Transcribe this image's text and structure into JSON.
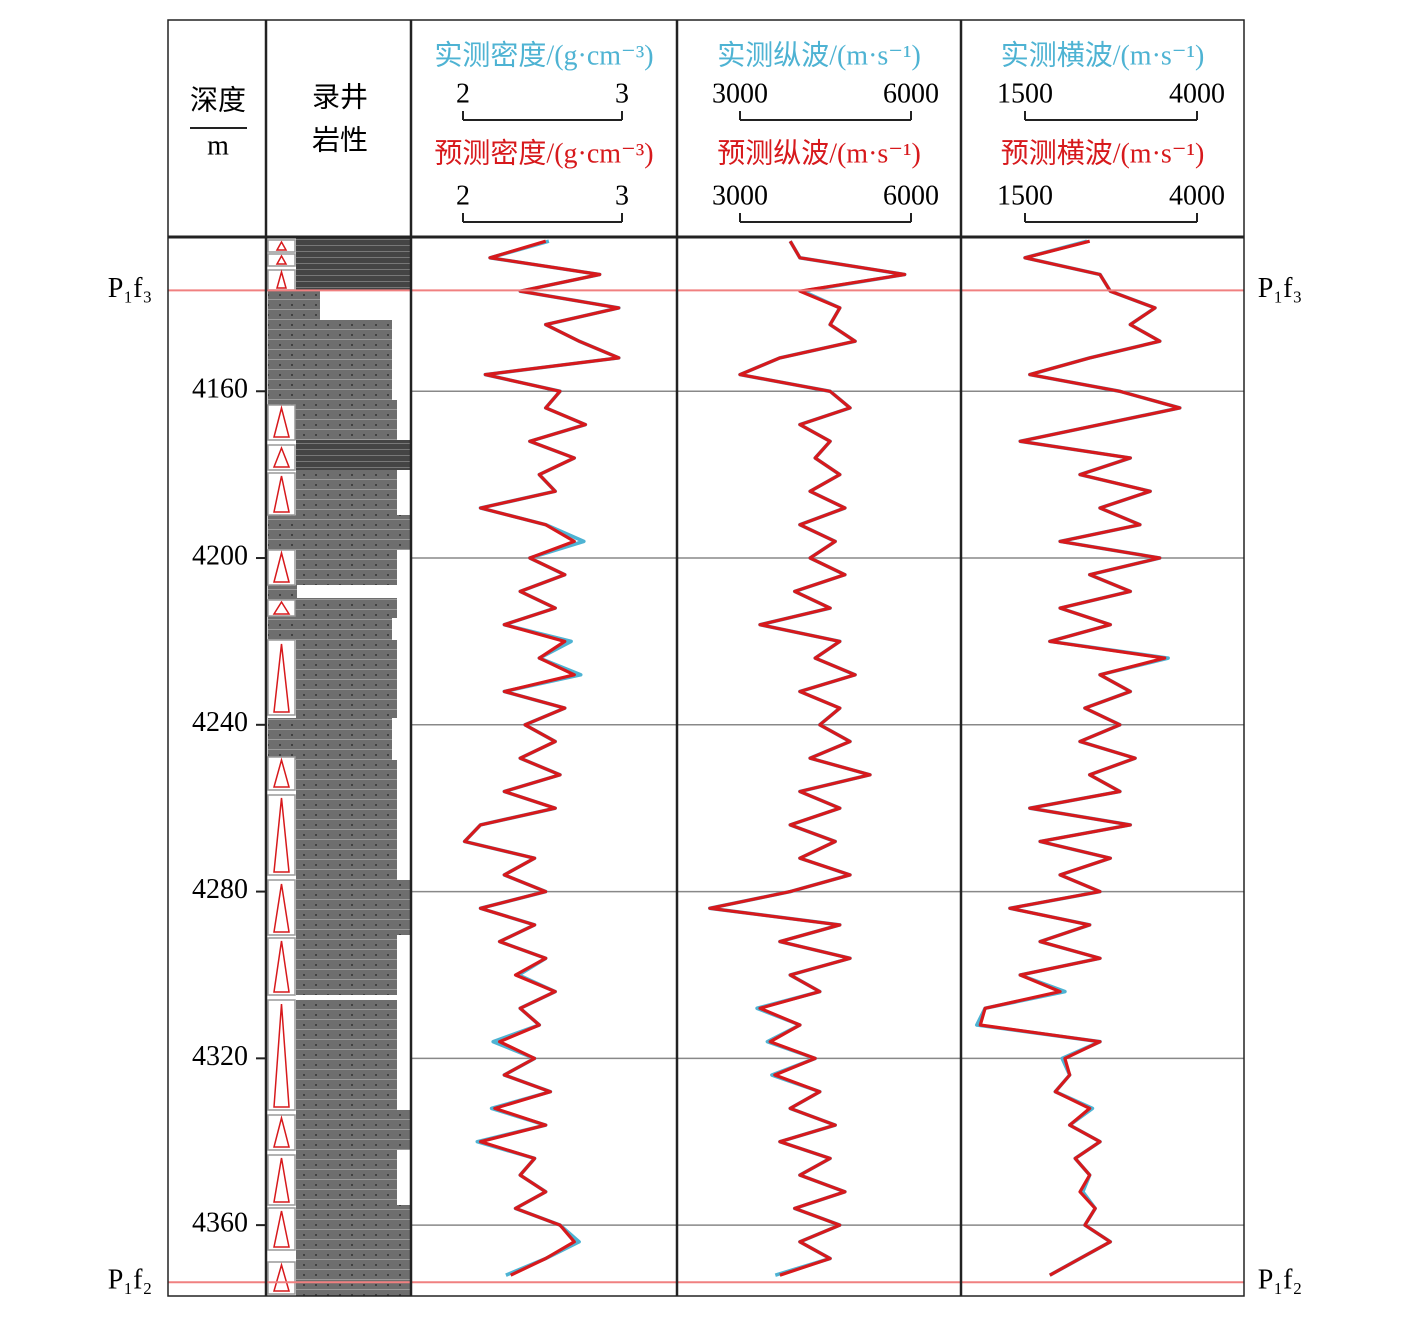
{
  "chart_data": {
    "type": "well-log",
    "depth_label": "深度",
    "depth_unit": "m",
    "lithology_label": [
      "录井",
      "岩性"
    ],
    "ylim": [
      4123,
      4377
    ],
    "yticks": [
      4160,
      4200,
      4240,
      4280,
      4320,
      4360
    ],
    "grid": true,
    "markers": [
      {
        "label": "P₁f₃",
        "depth": 4135.8,
        "color": "#f08080"
      },
      {
        "label": "P₁f₂",
        "depth": 4373.7,
        "color": "#f08080"
      }
    ],
    "depth": [
      4124,
      4128,
      4132,
      4136,
      4140,
      4144,
      4148,
      4152,
      4156,
      4160,
      4164,
      4168,
      4172,
      4176,
      4180,
      4184,
      4188,
      4192,
      4196,
      4200,
      4204,
      4208,
      4212,
      4216,
      4220,
      4224,
      4228,
      4232,
      4236,
      4240,
      4244,
      4248,
      4252,
      4256,
      4260,
      4264,
      4268,
      4272,
      4276,
      4280,
      4284,
      4288,
      4292,
      4296,
      4300,
      4304,
      4308,
      4312,
      4316,
      4320,
      4324,
      4328,
      4332,
      4336,
      4340,
      4344,
      4348,
      4352,
      4356,
      4360,
      4364,
      4368,
      4372
    ],
    "tracks": [
      {
        "series": [
          {
            "name": "实测密度/(g·cm⁻³)",
            "color": "#4eb3d3",
            "xlim": [
              2,
              3
            ],
            "xticks": [
              2,
              3
            ],
            "values": [
              2.54,
              2.17,
              2.86,
              2.36,
              2.98,
              2.52,
              2.73,
              2.98,
              2.14,
              2.61,
              2.52,
              2.77,
              2.42,
              2.7,
              2.48,
              2.58,
              2.11,
              2.52,
              2.76,
              2.42,
              2.64,
              2.36,
              2.58,
              2.26,
              2.68,
              2.48,
              2.74,
              2.26,
              2.64,
              2.39,
              2.58,
              2.36,
              2.61,
              2.26,
              2.58,
              2.11,
              2.01,
              2.45,
              2.26,
              2.52,
              2.11,
              2.45,
              2.23,
              2.52,
              2.35,
              2.58,
              2.36,
              2.48,
              2.19,
              2.45,
              2.26,
              2.55,
              2.18,
              2.52,
              2.09,
              2.45,
              2.36,
              2.52,
              2.33,
              2.61,
              2.73,
              2.52,
              2.27
            ]
          },
          {
            "name": "预测密度/(g·cm⁻³)",
            "color": "#d7191c",
            "xlim": [
              2,
              3
            ],
            "xticks": [
              2,
              3
            ],
            "values": [
              2.52,
              2.17,
              2.86,
              2.36,
              2.98,
              2.52,
              2.73,
              2.98,
              2.14,
              2.61,
              2.52,
              2.77,
              2.42,
              2.7,
              2.48,
              2.58,
              2.11,
              2.52,
              2.7,
              2.42,
              2.64,
              2.36,
              2.58,
              2.26,
              2.64,
              2.48,
              2.7,
              2.26,
              2.64,
              2.39,
              2.58,
              2.36,
              2.61,
              2.26,
              2.58,
              2.11,
              2.01,
              2.45,
              2.26,
              2.52,
              2.11,
              2.45,
              2.23,
              2.52,
              2.33,
              2.58,
              2.36,
              2.48,
              2.23,
              2.45,
              2.26,
              2.55,
              2.2,
              2.52,
              2.11,
              2.45,
              2.36,
              2.52,
              2.33,
              2.61,
              2.7,
              2.52,
              2.3
            ]
          }
        ]
      },
      {
        "series": [
          {
            "name": "实测纵波/(m·s⁻¹)",
            "color": "#4eb3d3",
            "xlim": [
              3000,
              6000
            ],
            "xticks": [
              3000,
              6000
            ],
            "values": [
              3880,
              4050,
              5890,
              4100,
              4750,
              4580,
              5020,
              3700,
              3000,
              4580,
              4930,
              4050,
              4580,
              4320,
              4750,
              4230,
              4840,
              4050,
              4670,
              4230,
              4840,
              3960,
              4580,
              3350,
              4750,
              4320,
              5020,
              4050,
              4750,
              4400,
              4930,
              4230,
              5280,
              4050,
              4750,
              3880,
              4670,
              4050,
              4930,
              3880,
              2470,
              4750,
              3700,
              4930,
              3880,
              4400,
              3300,
              4050,
              3480,
              4320,
              3560,
              4400,
              3880,
              4670,
              3700,
              4580,
              4050,
              4840,
              3960,
              4750,
              4050,
              4580,
              3620
            ]
          },
          {
            "name": "预测纵波/(m·s⁻¹)",
            "color": "#d7191c",
            "xlim": [
              3000,
              6000
            ],
            "xticks": [
              3000,
              6000
            ],
            "values": [
              3880,
              4050,
              5890,
              4050,
              4750,
              4580,
              5020,
              3700,
              3000,
              4580,
              4930,
              4050,
              4580,
              4320,
              4750,
              4230,
              4840,
              4050,
              4670,
              4230,
              4840,
              3960,
              4580,
              3350,
              4750,
              4320,
              5020,
              4050,
              4750,
              4400,
              4930,
              4230,
              5280,
              4050,
              4750,
              3880,
              4670,
              4050,
              4930,
              3880,
              2470,
              4750,
              3700,
              4930,
              3880,
              4400,
              3350,
              4050,
              3530,
              4320,
              3610,
              4400,
              3880,
              4670,
              3700,
              4580,
              4050,
              4840,
              3960,
              4750,
              4050,
              4580,
              3700
            ]
          }
        ]
      },
      {
        "series": [
          {
            "name": "实测横波/(m·s⁻¹)",
            "color": "#4eb3d3",
            "xlim": [
              1500,
              4000
            ],
            "xticks": [
              1500,
              4000
            ],
            "values": [
              2400,
              1500,
              2590,
              2740,
              3390,
              3030,
              3460,
              2440,
              1570,
              2880,
              3750,
              2590,
              1430,
              3030,
              2300,
              3320,
              2590,
              3170,
              2010,
              3460,
              2440,
              3030,
              2010,
              2740,
              1860,
              3580,
              2590,
              3030,
              2370,
              2880,
              2300,
              3100,
              2440,
              2880,
              1570,
              3030,
              1720,
              2740,
              2010,
              2590,
              1280,
              2440,
              1720,
              2590,
              1430,
              2080,
              920,
              800,
              2590,
              2040,
              2150,
              1940,
              2480,
              2150,
              2590,
              2230,
              2440,
              2340,
              2520,
              2370,
              2740,
              2300,
              1860
            ]
          },
          {
            "name": "预测横波/(m·s⁻¹)",
            "color": "#d7191c",
            "xlim": [
              1500,
              4000
            ],
            "xticks": [
              1500,
              4000
            ],
            "values": [
              2440,
              1500,
              2590,
              2740,
              3390,
              3030,
              3460,
              2440,
              1570,
              2880,
              3750,
              2590,
              1430,
              3030,
              2300,
              3320,
              2590,
              3170,
              2010,
              3460,
              2440,
              3030,
              2010,
              2740,
              1860,
              3530,
              2590,
              3030,
              2370,
              2880,
              2300,
              3100,
              2440,
              2880,
              1570,
              3030,
              1720,
              2740,
              2010,
              2590,
              1280,
              2440,
              1720,
              2590,
              1430,
              2010,
              920,
              850,
              2590,
              2080,
              2150,
              1940,
              2440,
              2150,
              2590,
              2230,
              2440,
              2300,
              2520,
              2370,
              2740,
              2300,
              1860
            ]
          }
        ]
      }
    ]
  }
}
